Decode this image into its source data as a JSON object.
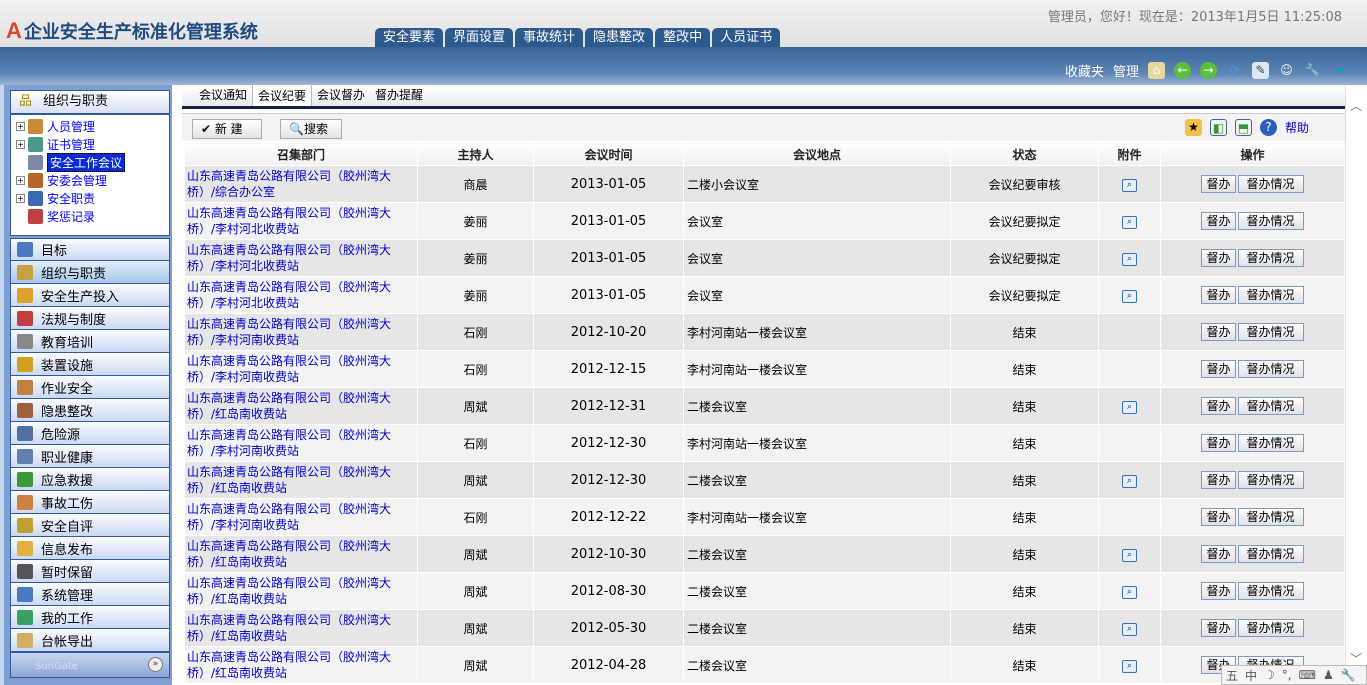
{
  "app": {
    "logo_mark": "A",
    "title": "企业安全生产标准化管理系统",
    "greeting": "管理员，您好！现在是：2013年1月5日  11:25:08"
  },
  "nav_tabs": [
    "安全要素",
    "界面设置",
    "事故统计",
    "隐患整改",
    "整改中",
    "人员证书"
  ],
  "band": {
    "favorites": "收藏夹",
    "manage": "管理",
    "icons": [
      "home-icon",
      "back-icon",
      "forward-icon",
      "refresh-icon",
      "edit-icon",
      "user-chat-icon",
      "wrench-icon",
      "exit-icon"
    ]
  },
  "sidebar": {
    "section": "组织与职责",
    "tree": [
      {
        "label": "人员管理",
        "expand": true
      },
      {
        "label": "证书管理",
        "expand": true
      },
      {
        "label": "安全工作会议",
        "expand": false,
        "selected": true
      },
      {
        "label": "安委会管理",
        "expand": true
      },
      {
        "label": "安全职责",
        "expand": true
      },
      {
        "label": "奖惩记录",
        "expand": false
      }
    ],
    "accordion": [
      "目标",
      "组织与职责",
      "安全生产投入",
      "法规与制度",
      "教育培训",
      "装置设施",
      "作业安全",
      "隐患整改",
      "危险源",
      "职业健康",
      "应急救援",
      "事故工伤",
      "安全自评",
      "信息发布",
      "暂时保留",
      "系统管理",
      "我的工作",
      "台帐导出"
    ],
    "active": "组织与职责",
    "brand": "SunGate"
  },
  "subtabs": [
    "会议通知",
    "会议纪要",
    "会议督办",
    "督办提醒"
  ],
  "active_subtab": "会议纪要",
  "toolbar": {
    "new": "✔ 新 建",
    "search": "🔍搜索",
    "help": "帮助"
  },
  "table": {
    "headers": [
      "召集部门",
      "主持人",
      "会议时间",
      "会议地点",
      "状态",
      "附件",
      "操作"
    ],
    "actions": [
      "督办",
      "督办情况"
    ],
    "rows": [
      {
        "dept": "山东高速青岛公路有限公司（胶州湾大桥）/综合办公室",
        "host": "商晨",
        "date": "2013-01-05",
        "place": "二楼小会议室",
        "status": "会议纪要审核",
        "attach": true
      },
      {
        "dept": "山东高速青岛公路有限公司（胶州湾大桥）/李村河北收费站",
        "host": "姜丽",
        "date": "2013-01-05",
        "place": "会议室",
        "status": "会议纪要拟定",
        "attach": true
      },
      {
        "dept": "山东高速青岛公路有限公司（胶州湾大桥）/李村河北收费站",
        "host": "姜丽",
        "date": "2013-01-05",
        "place": "会议室",
        "status": "会议纪要拟定",
        "attach": true
      },
      {
        "dept": "山东高速青岛公路有限公司（胶州湾大桥）/李村河北收费站",
        "host": "姜丽",
        "date": "2013-01-05",
        "place": "会议室",
        "status": "会议纪要拟定",
        "attach": true
      },
      {
        "dept": "山东高速青岛公路有限公司（胶州湾大桥）/李村河南收费站",
        "host": "石刚",
        "date": "2012-10-20",
        "place": "李村河南站一楼会议室",
        "status": "结束",
        "attach": false
      },
      {
        "dept": "山东高速青岛公路有限公司（胶州湾大桥）/李村河南收费站",
        "host": "石刚",
        "date": "2012-12-15",
        "place": "李村河南站一楼会议室",
        "status": "结束",
        "attach": false
      },
      {
        "dept": "山东高速青岛公路有限公司（胶州湾大桥）/红岛南收费站",
        "host": "周斌",
        "date": "2012-12-31",
        "place": "二楼会议室",
        "status": "结束",
        "attach": true
      },
      {
        "dept": "山东高速青岛公路有限公司（胶州湾大桥）/李村河南收费站",
        "host": "石刚",
        "date": "2012-12-30",
        "place": "李村河南站一楼会议室",
        "status": "结束",
        "attach": false
      },
      {
        "dept": "山东高速青岛公路有限公司（胶州湾大桥）/红岛南收费站",
        "host": "周斌",
        "date": "2012-12-30",
        "place": "二楼会议室",
        "status": "结束",
        "attach": true
      },
      {
        "dept": "山东高速青岛公路有限公司（胶州湾大桥）/李村河南收费站",
        "host": "石刚",
        "date": "2012-12-22",
        "place": "李村河南站一楼会议室",
        "status": "结束",
        "attach": false
      },
      {
        "dept": "山东高速青岛公路有限公司（胶州湾大桥）/红岛南收费站",
        "host": "周斌",
        "date": "2012-10-30",
        "place": "二楼会议室",
        "status": "结束",
        "attach": true
      },
      {
        "dept": "山东高速青岛公路有限公司（胶州湾大桥）/红岛南收费站",
        "host": "周斌",
        "date": "2012-08-30",
        "place": "二楼会议室",
        "status": "结束",
        "attach": true
      },
      {
        "dept": "山东高速青岛公路有限公司（胶州湾大桥）/红岛南收费站",
        "host": "周斌",
        "date": "2012-05-30",
        "place": "二楼会议室",
        "status": "结束",
        "attach": true
      },
      {
        "dept": "山东高速青岛公路有限公司（胶州湾大桥）/红岛南收费站",
        "host": "周斌",
        "date": "2012-04-28",
        "place": "二楼会议室",
        "status": "结束",
        "attach": true
      }
    ]
  },
  "ime": [
    "五",
    "中",
    "☽",
    "°,",
    "⌨",
    "♟",
    "🔧"
  ]
}
